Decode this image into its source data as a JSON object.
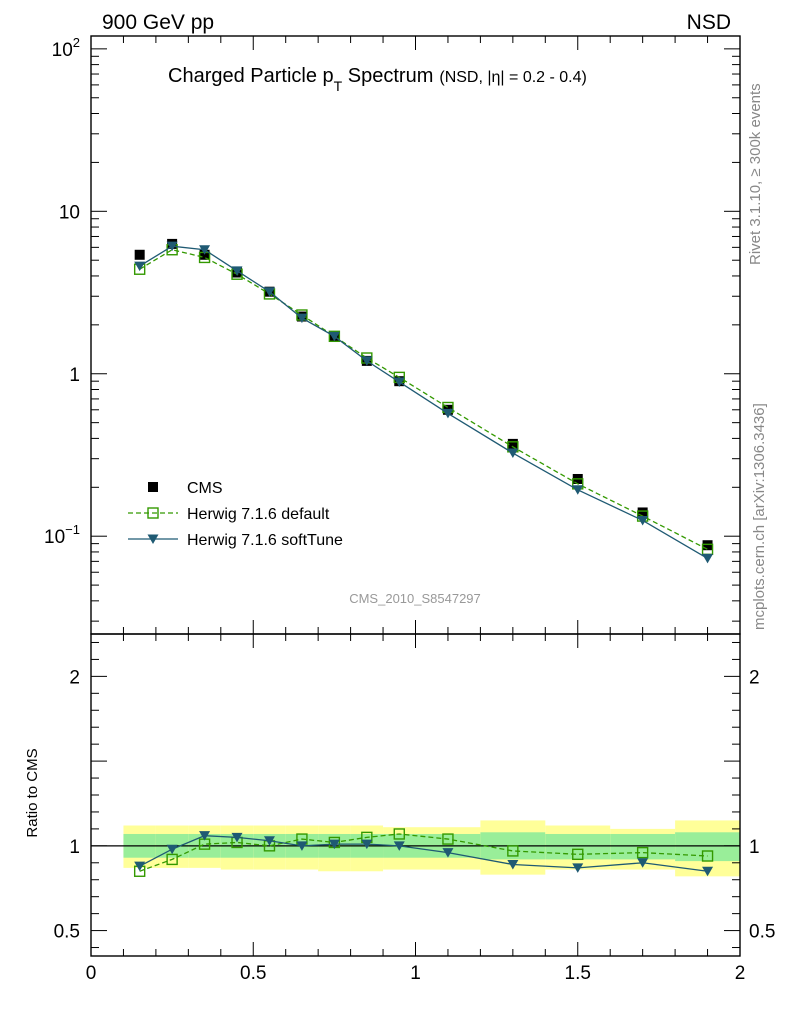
{
  "header": {
    "left_label": "900 GeV pp",
    "right_label": "NSD"
  },
  "chart_data": {
    "type": "line",
    "title": "Charged Particle p",
    "title_subscript": "T",
    "title_suffix": " Spectrum",
    "title_selection": "(NSD, |η| = 0.2 - 0.4)",
    "analysis_label": "CMS_2010_S8547297",
    "side_label_top": "Rivet 3.1.10, ≥ 300k events",
    "side_label_bottom": "mcplots.cern.ch [arXiv:1306.3436]",
    "xlim": [
      0,
      2
    ],
    "x_ticks": [
      "0",
      "0.5",
      "1",
      "1.5",
      "2"
    ],
    "main_plot": {
      "yscale": "log",
      "ylim": [
        0.025,
        120
      ],
      "y_ticks": [
        {
          "base": "10",
          "exp": "2"
        },
        {
          "base": "10",
          "exp": ""
        },
        {
          "base": "1",
          "exp": ""
        },
        {
          "base": "10",
          "exp": "−1"
        }
      ]
    },
    "ratio_plot": {
      "ylabel": "Ratio to CMS",
      "ylim": [
        0.35,
        2.25
      ],
      "y_ticks": [
        "0.5",
        "1",
        "2"
      ]
    },
    "x": [
      0.15,
      0.25,
      0.35,
      0.45,
      0.55,
      0.65,
      0.75,
      0.85,
      0.95,
      1.1,
      1.3,
      1.5,
      1.7,
      1.9
    ],
    "series": [
      {
        "name": "CMS",
        "marker": "filled-square",
        "color": "#000000",
        "values": [
          5.4,
          6.3,
          5.4,
          4.2,
          3.2,
          2.25,
          1.7,
          1.2,
          0.9,
          0.6,
          0.37,
          0.225,
          0.14,
          0.088
        ]
      },
      {
        "name": "Herwig 7.1.6 default",
        "marker": "open-square",
        "line": "dashed",
        "color": "#339900",
        "values": [
          4.4,
          5.8,
          5.2,
          4.1,
          3.1,
          2.3,
          1.7,
          1.25,
          0.95,
          0.62,
          0.355,
          0.21,
          0.133,
          0.083
        ]
      },
      {
        "name": "Herwig 7.1.6 softTune",
        "marker": "filled-triangle-down",
        "line": "solid",
        "color": "#1f5a73",
        "values": [
          4.6,
          6.1,
          5.8,
          4.3,
          3.2,
          2.2,
          1.7,
          1.2,
          0.89,
          0.57,
          0.325,
          0.193,
          0.125,
          0.073
        ]
      }
    ],
    "ratios": [
      {
        "name": "Herwig 7.1.6 default",
        "values": [
          0.85,
          0.92,
          1.01,
          1.02,
          1.0,
          1.04,
          1.02,
          1.05,
          1.07,
          1.04,
          0.97,
          0.95,
          0.96,
          0.94
        ]
      },
      {
        "name": "Herwig 7.1.6 softTune",
        "values": [
          0.88,
          0.98,
          1.06,
          1.05,
          1.03,
          1.0,
          1.01,
          1.01,
          1.0,
          0.96,
          0.89,
          0.87,
          0.9,
          0.85
        ]
      }
    ],
    "uncertainty_bands": {
      "bins": [
        [
          0.1,
          0.2
        ],
        [
          0.2,
          0.3
        ],
        [
          0.3,
          0.4
        ],
        [
          0.4,
          0.5
        ],
        [
          0.5,
          0.6
        ],
        [
          0.6,
          0.7
        ],
        [
          0.7,
          0.8
        ],
        [
          0.8,
          0.9
        ],
        [
          0.9,
          1.0
        ],
        [
          1.0,
          1.2
        ],
        [
          1.2,
          1.4
        ],
        [
          1.4,
          1.6
        ],
        [
          1.6,
          1.8
        ],
        [
          1.8,
          2.0
        ]
      ],
      "inner": [
        [
          0.93,
          1.07
        ],
        [
          0.93,
          1.07
        ],
        [
          0.93,
          1.07
        ],
        [
          0.93,
          1.07
        ],
        [
          0.93,
          1.07
        ],
        [
          0.93,
          1.07
        ],
        [
          0.93,
          1.07
        ],
        [
          0.93,
          1.07
        ],
        [
          0.93,
          1.07
        ],
        [
          0.93,
          1.07
        ],
        [
          0.92,
          1.08
        ],
        [
          0.92,
          1.07
        ],
        [
          0.92,
          1.07
        ],
        [
          0.91,
          1.08
        ]
      ],
      "outer": [
        [
          0.87,
          1.12
        ],
        [
          0.87,
          1.12
        ],
        [
          0.87,
          1.12
        ],
        [
          0.86,
          1.12
        ],
        [
          0.86,
          1.12
        ],
        [
          0.86,
          1.12
        ],
        [
          0.85,
          1.12
        ],
        [
          0.85,
          1.12
        ],
        [
          0.86,
          1.11
        ],
        [
          0.86,
          1.11
        ],
        [
          0.83,
          1.15
        ],
        [
          0.86,
          1.12
        ],
        [
          0.86,
          1.1
        ],
        [
          0.82,
          1.15
        ]
      ],
      "inner_color": "#99ee99",
      "outer_color": "#ffff99"
    }
  }
}
